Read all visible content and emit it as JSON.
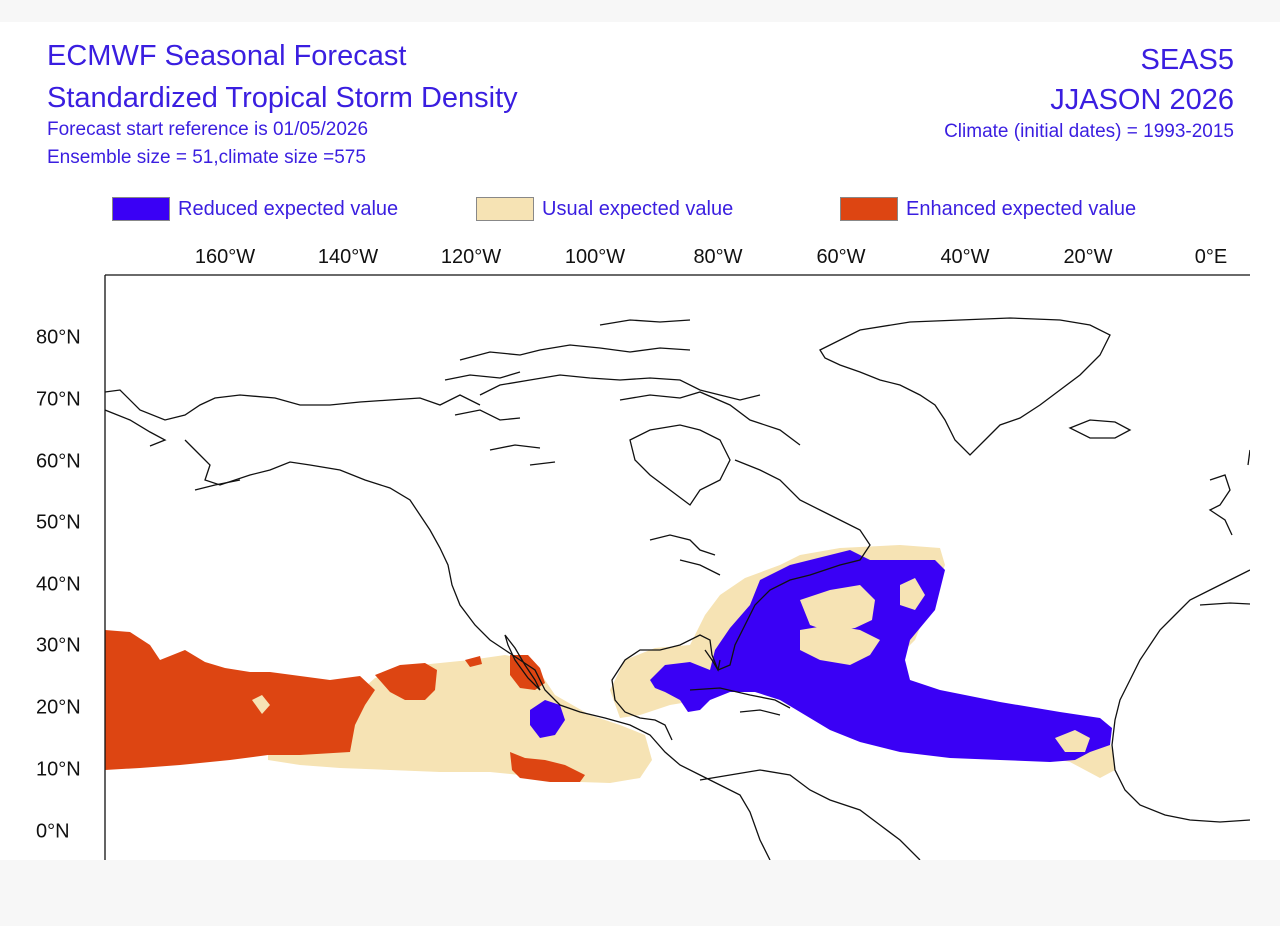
{
  "header": {
    "title": "ECMWF Seasonal Forecast",
    "subtitle": "Standardized Tropical Storm Density",
    "forecast_start": "Forecast start reference is 01/05/2026",
    "ensemble": "Ensemble size = 51,climate size =575",
    "system": "SEAS5",
    "period": "JJASON 2026",
    "climate": "Climate (initial dates) = 1993-2015"
  },
  "legend": [
    {
      "label": "Reduced expected value",
      "color": "#3a00f5"
    },
    {
      "label": "Usual expected value",
      "color": "#f6e3b4"
    },
    {
      "label": "Enhanced expected value",
      "color": "#dd4512"
    }
  ],
  "map": {
    "longitude_labels": [
      "160°W",
      "140°W",
      "120°W",
      "100°W",
      "80°W",
      "60°W",
      "40°W",
      "20°W",
      "0°E"
    ],
    "latitude_labels": [
      "80°N",
      "70°N",
      "60°N",
      "50°N",
      "40°N",
      "30°N",
      "20°N",
      "10°N",
      "0°N"
    ],
    "regions": [
      {
        "name": "East/Central Pacific basin",
        "category": "Usual expected value"
      },
      {
        "name": "Central Pacific near Hawaii",
        "category": "Enhanced expected value"
      },
      {
        "name": "Gulf of California",
        "category": "Enhanced expected value"
      },
      {
        "name": "Gulf of Mexico",
        "category": "Usual expected value"
      },
      {
        "name": "Main Development Region / Caribbean",
        "category": "Reduced expected value"
      },
      {
        "name": "Western Atlantic",
        "category": "Reduced expected value"
      }
    ]
  }
}
